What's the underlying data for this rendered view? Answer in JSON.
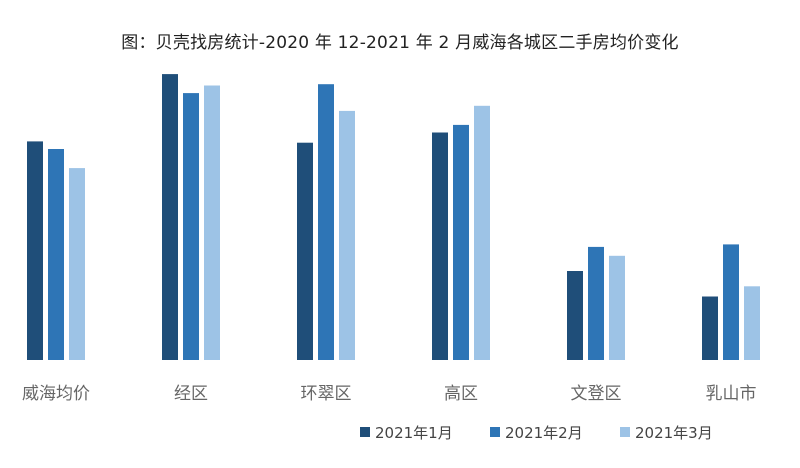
{
  "chart_data": {
    "type": "bar",
    "title": "图：贝壳找房统计-2020 年 12-2021 年 2 月威海各城区二手房均价变化",
    "categories": [
      "威海均价",
      "经区",
      "环翠区",
      "高区",
      "文登区",
      "乳山市"
    ],
    "series": [
      {
        "name": "2021年1月",
        "color": "#1f4e79",
        "values": [
          8600,
          11250,
          8550,
          8950,
          3500,
          2500
        ]
      },
      {
        "name": "2021年2月",
        "color": "#2e75b6",
        "values": [
          8300,
          10500,
          10850,
          9250,
          4450,
          4550
        ]
      },
      {
        "name": "2021年3月",
        "color": "#9dc3e6",
        "values": [
          7550,
          10800,
          9800,
          10000,
          4100,
          2900
        ]
      }
    ],
    "ylim": [
      0,
      12000
    ],
    "xlabel": "",
    "ylabel": "",
    "grid": false,
    "legend_position": "bottom-right",
    "yaxis_visible": false
  }
}
